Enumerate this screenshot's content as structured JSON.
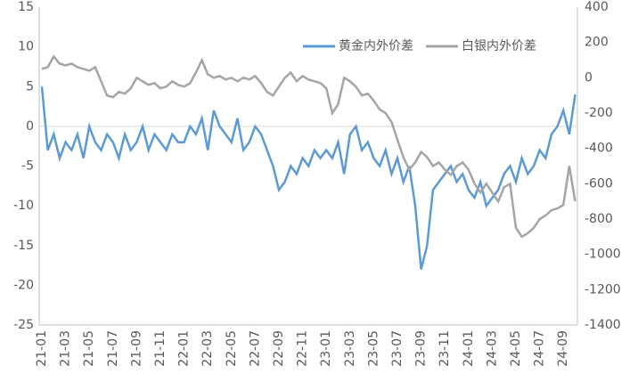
{
  "chart_data": {
    "type": "line",
    "categories": [
      "21-01",
      null,
      null,
      null,
      "21-03",
      null,
      null,
      null,
      "21-05",
      null,
      null,
      null,
      "21-07",
      null,
      null,
      null,
      "21-09",
      null,
      null,
      null,
      "21-11",
      null,
      null,
      null,
      "22-01",
      null,
      null,
      null,
      "22-03",
      null,
      null,
      null,
      "22-05",
      null,
      null,
      null,
      "22-07",
      null,
      null,
      null,
      "22-09",
      null,
      null,
      null,
      "22-11",
      null,
      null,
      null,
      "23-01",
      null,
      null,
      null,
      "23-03",
      null,
      null,
      null,
      "23-05",
      null,
      null,
      null,
      "23-07",
      null,
      null,
      null,
      "23-09",
      null,
      null,
      null,
      "23-11",
      null,
      null,
      null,
      "24-01",
      null,
      null,
      null,
      "24-03",
      null,
      null,
      null,
      "24-05",
      null,
      null,
      null,
      "24-07",
      null,
      null,
      null,
      "24-09",
      null,
      null
    ],
    "series": [
      {
        "name": "黄金内外价差",
        "color": "#5b9bd5",
        "values": [
          5,
          -3,
          -1,
          -4,
          -2,
          -3,
          -1,
          -4,
          0,
          -2,
          -3,
          -1,
          -2,
          -4,
          -1,
          -3,
          -2,
          0,
          -3,
          -1,
          -2,
          -3,
          -1,
          -2,
          -2,
          0,
          -1,
          1,
          -3,
          2,
          0,
          -1,
          -2,
          1,
          -3,
          -2,
          0,
          -1,
          -3,
          -5,
          -8,
          -7,
          -5,
          -6,
          -4,
          -5,
          -3,
          -4,
          -3,
          -4,
          -2,
          -6,
          -1,
          0,
          -3,
          -2,
          -4,
          -5,
          -3,
          -6,
          -4,
          -7,
          -5,
          -10,
          -18,
          -15,
          -8,
          -7,
          -6,
          -5,
          -7,
          -6,
          -8,
          -9,
          -7,
          -10,
          -9,
          -8,
          -6,
          -5,
          -7,
          -4,
          -6,
          -5,
          -3,
          -4,
          -1,
          0,
          2,
          -1,
          4
        ]
      },
      {
        "name": "白银内外价差",
        "color": "#a5a5a5",
        "axis": "y2",
        "values": [
          50,
          60,
          120,
          80,
          70,
          80,
          60,
          50,
          40,
          60,
          -20,
          -100,
          -110,
          -80,
          -90,
          -60,
          0,
          -20,
          -40,
          -30,
          -60,
          -50,
          -20,
          -40,
          -50,
          -30,
          30,
          100,
          20,
          0,
          10,
          -10,
          0,
          -20,
          0,
          -10,
          10,
          -30,
          -80,
          -100,
          -50,
          0,
          30,
          -20,
          10,
          -10,
          -20,
          -30,
          -60,
          -200,
          -150,
          0,
          -20,
          -50,
          -100,
          -90,
          -130,
          -180,
          -200,
          -250,
          -350,
          -450,
          -520,
          -480,
          -420,
          -450,
          -500,
          -480,
          -520,
          -550,
          -500,
          -480,
          -520,
          -600,
          -650,
          -600,
          -650,
          -700,
          -620,
          -600,
          -850,
          -900,
          -880,
          -850,
          -800,
          -780,
          -750,
          -740,
          -720,
          -500,
          -700
        ]
      }
    ],
    "ylim": [
      -25,
      15
    ],
    "yticks": [
      -25,
      -20,
      -15,
      -10,
      -5,
      0,
      5,
      10,
      15
    ],
    "y2lim": [
      -1400,
      400
    ],
    "y2ticks": [
      -1400,
      -1200,
      -1000,
      -800,
      -600,
      -400,
      -200,
      0,
      200,
      400
    ],
    "legend": "top-right"
  }
}
